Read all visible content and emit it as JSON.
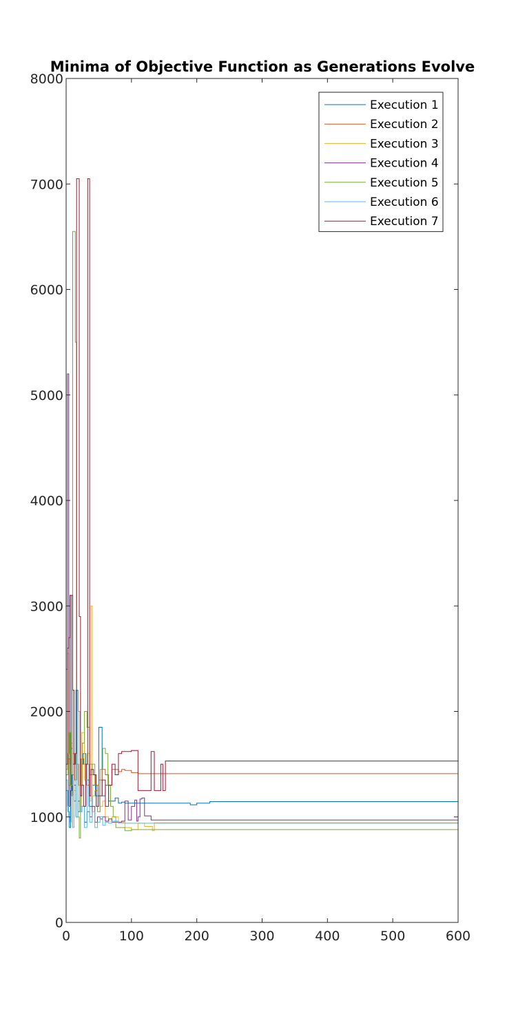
{
  "chart_data": {
    "type": "line",
    "title": "Minima of Objective Function as Generations Evolve",
    "xlabel": "",
    "ylabel": "",
    "xlim": [
      0,
      600
    ],
    "ylim": [
      0,
      8000
    ],
    "xticks": [
      0,
      100,
      200,
      300,
      400,
      500,
      600
    ],
    "yticks": [
      0,
      1000,
      2000,
      3000,
      4000,
      5000,
      6000,
      7000,
      8000
    ],
    "grid": false,
    "legend_position": "top-right",
    "series": [
      {
        "name": "Execution 1",
        "color": "#0072BD",
        "x": [
          0,
          3,
          5,
          7,
          9,
          12,
          15,
          18,
          22,
          26,
          30,
          35,
          40,
          45,
          50,
          55,
          60,
          65,
          70,
          75,
          80,
          85,
          90,
          100,
          150,
          190,
          200,
          220,
          600
        ],
        "y": [
          1250,
          1050,
          900,
          1250,
          1400,
          1150,
          2200,
          1050,
          1500,
          1600,
          1350,
          1100,
          1300,
          1200,
          1850,
          1200,
          1300,
          1150,
          1150,
          1180,
          1130,
          1140,
          1130,
          1130,
          1130,
          1115,
          1130,
          1145,
          1145
        ]
      },
      {
        "name": "Execution 2",
        "color": "#D95319",
        "x": [
          0,
          2,
          4,
          6,
          8,
          10,
          13,
          16,
          19,
          23,
          27,
          31,
          35,
          40,
          45,
          50,
          55,
          60,
          65,
          70,
          75,
          80,
          85,
          90,
          100,
          110,
          130,
          600
        ],
        "y": [
          1450,
          1500,
          1550,
          1500,
          1650,
          1600,
          1350,
          1500,
          1300,
          1550,
          1500,
          1300,
          1500,
          1400,
          1300,
          1350,
          1450,
          1400,
          1300,
          1450,
          1450,
          1430,
          1450,
          1440,
          1420,
          1410,
          1410,
          1410
        ]
      },
      {
        "name": "Execution 3",
        "color": "#EDB120",
        "x": [
          0,
          2,
          4,
          6,
          8,
          10,
          12,
          15,
          18,
          21,
          24,
          28,
          32,
          36,
          38,
          40,
          44,
          48,
          52,
          56,
          60,
          65,
          70,
          80,
          90,
          100,
          110,
          120,
          132,
          135,
          600
        ],
        "y": [
          1450,
          2550,
          1300,
          1100,
          1700,
          2200,
          1250,
          1450,
          1300,
          1100,
          1800,
          1350,
          1600,
          1150,
          3000,
          1200,
          1250,
          1050,
          1100,
          1150,
          1000,
          960,
          1000,
          950,
          900,
          880,
          940,
          910,
          870,
          945,
          945
        ]
      },
      {
        "name": "Execution 4",
        "color": "#7E2F8E",
        "x": [
          0,
          2,
          4,
          6,
          8,
          10,
          12,
          15,
          18,
          21,
          24,
          28,
          32,
          36,
          40,
          44,
          48,
          52,
          56,
          60,
          65,
          70,
          75,
          80,
          85,
          90,
          95,
          100,
          105,
          108,
          110,
          113,
          116,
          120,
          130,
          600
        ],
        "y": [
          2400,
          5200,
          1100,
          3100,
          1200,
          1500,
          1300,
          1000,
          1150,
          1050,
          1100,
          950,
          1050,
          1000,
          1100,
          950,
          1000,
          980,
          1000,
          960,
          980,
          950,
          950,
          950,
          960,
          1150,
          970,
          1100,
          1160,
          960,
          1000,
          1170,
          1180,
          1010,
          970,
          975
        ]
      },
      {
        "name": "Execution 5",
        "color": "#77AC30",
        "x": [
          0,
          3,
          5,
          7,
          10,
          12,
          14,
          16,
          18,
          20,
          22,
          25,
          28,
          32,
          36,
          40,
          44,
          48,
          52,
          56,
          60,
          64,
          68,
          72,
          76,
          80,
          90,
          100,
          130,
          600
        ],
        "y": [
          1400,
          1600,
          1800,
          1300,
          6550,
          6550,
          5500,
          1500,
          1000,
          800,
          1300,
          1700,
          2000,
          1850,
          1400,
          1500,
          1300,
          1050,
          1450,
          1650,
          1600,
          1300,
          1100,
          1000,
          900,
          900,
          870,
          880,
          880,
          880
        ]
      },
      {
        "name": "Execution 6",
        "color": "#4DBEEE",
        "x": [
          0,
          2,
          4,
          6,
          8,
          10,
          12,
          15,
          18,
          21,
          24,
          28,
          32,
          36,
          40,
          44,
          48,
          52,
          56,
          60,
          65,
          70,
          80,
          100,
          600
        ],
        "y": [
          1350,
          1100,
          1000,
          950,
          1200,
          900,
          1500,
          1000,
          2000,
          1050,
          1100,
          900,
          1500,
          950,
          1050,
          900,
          950,
          1000,
          920,
          950,
          940,
          960,
          940,
          940,
          940
        ]
      },
      {
        "name": "Execution 7",
        "color": "#A2142F",
        "x": [
          0,
          2,
          4,
          6,
          8,
          10,
          12,
          14,
          16,
          18,
          20,
          22,
          24,
          27,
          30,
          33,
          36,
          38,
          42,
          46,
          50,
          55,
          60,
          65,
          70,
          75,
          80,
          85,
          90,
          100,
          110,
          120,
          130,
          135,
          140,
          145,
          148,
          150,
          152,
          600
        ],
        "y": [
          1500,
          2600,
          2700,
          3100,
          3100,
          2200,
          1500,
          1600,
          7050,
          7050,
          2900,
          1200,
          1300,
          1100,
          1500,
          7050,
          1200,
          1450,
          1400,
          1100,
          1200,
          1350,
          1100,
          1300,
          1500,
          1400,
          1600,
          1620,
          1620,
          1630,
          1250,
          1250,
          1620,
          1250,
          1250,
          1500,
          1250,
          1250,
          1530,
          1530
        ]
      }
    ]
  }
}
